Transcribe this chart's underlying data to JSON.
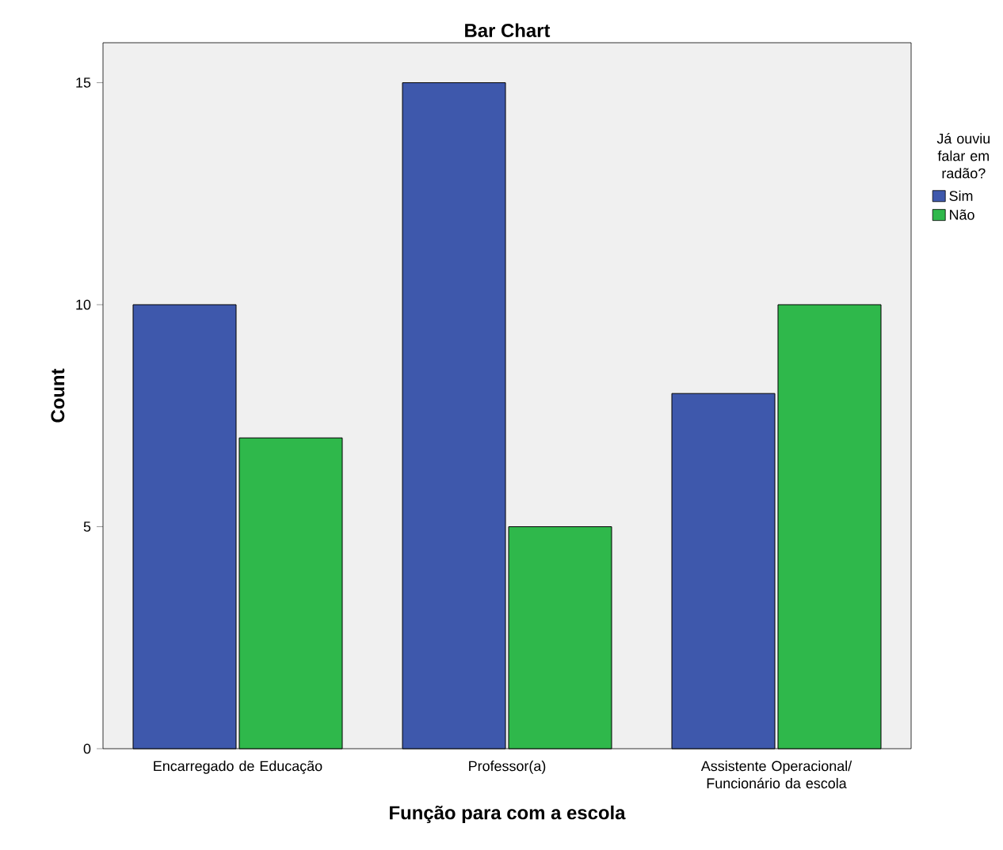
{
  "chart_data": {
    "type": "bar",
    "title": "Bar Chart",
    "xlabel": "Função para com a escola",
    "ylabel": "Count",
    "legend_title": "Já ouviu falar em radão?",
    "legend": "right",
    "categories": [
      "Encarregado de Educação",
      "Professor(a)",
      "Assistente Operacional/ Funcionário da escola"
    ],
    "series": [
      {
        "name": "Sim",
        "color": "#3e58ac",
        "values": [
          10,
          15,
          8
        ]
      },
      {
        "name": "Não",
        "color": "#2fb84b",
        "values": [
          7,
          5,
          10
        ]
      }
    ],
    "ylim": [
      0,
      15.9
    ],
    "yticks": [
      0,
      5,
      10,
      15
    ]
  }
}
